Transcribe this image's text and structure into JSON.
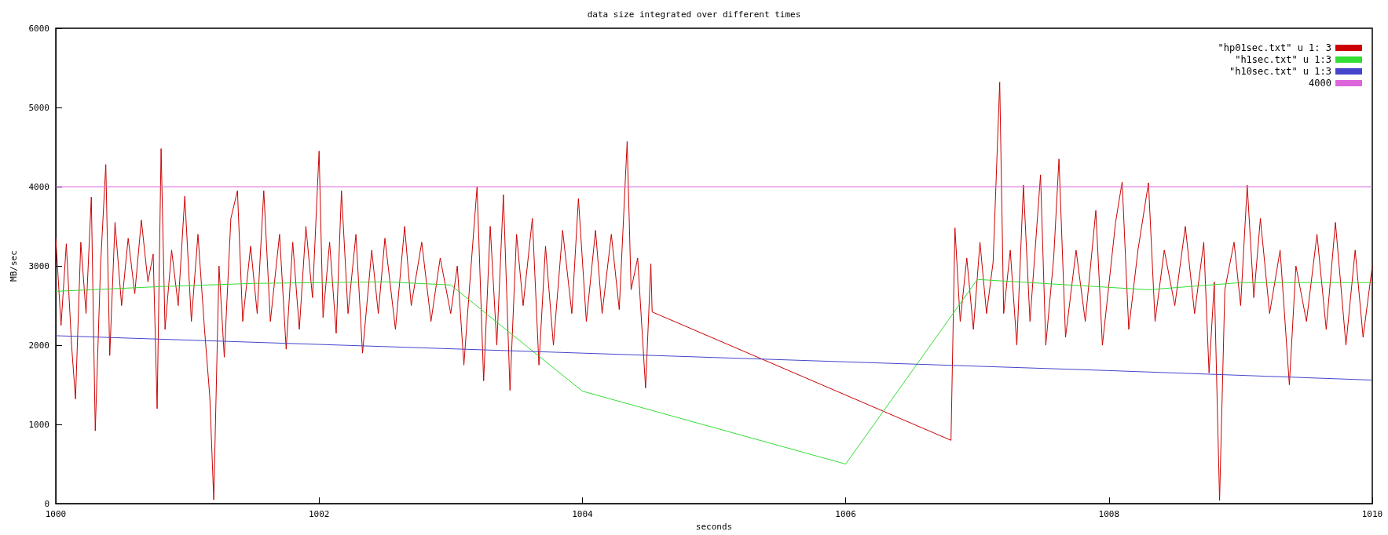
{
  "chart_data": {
    "type": "line",
    "title": "data size integrated over different times",
    "xlabel": "seconds",
    "ylabel": "MB/sec",
    "xlim": [
      1000,
      1010
    ],
    "xticks": [
      1000,
      1002,
      1004,
      1006,
      1008,
      1010
    ],
    "ylim": [
      0,
      6000
    ],
    "yticks": [
      0,
      1000,
      2000,
      3000,
      4000,
      5000,
      6000
    ],
    "grid": false,
    "legend": "top right",
    "marker": "none",
    "line_style": "solid",
    "series": [
      {
        "name": "\"hp01sec.txt\" u 1: 3",
        "color": "#cc0000",
        "x": [
          1000.0,
          1000.04,
          1000.08,
          1000.12,
          1000.15,
          1000.19,
          1000.23,
          1000.27,
          1000.3,
          1000.34,
          1000.38,
          1000.41,
          1000.45,
          1000.5,
          1000.55,
          1000.6,
          1000.65,
          1000.7,
          1000.74,
          1000.77,
          1000.8,
          1000.83,
          1000.88,
          1000.93,
          1000.98,
          1001.03,
          1001.08,
          1001.13,
          1001.17,
          1001.2,
          1001.24,
          1001.28,
          1001.33,
          1001.38,
          1001.42,
          1001.48,
          1001.53,
          1001.58,
          1001.63,
          1001.7,
          1001.75,
          1001.8,
          1001.85,
          1001.9,
          1001.95,
          1002.0,
          1002.03,
          1002.08,
          1002.13,
          1002.17,
          1002.22,
          1002.28,
          1002.33,
          1002.4,
          1002.45,
          1002.5,
          1002.58,
          1002.65,
          1002.7,
          1002.78,
          1002.85,
          1002.92,
          1003.0,
          1003.05,
          1003.1,
          1003.15,
          1003.2,
          1003.25,
          1003.3,
          1003.35,
          1003.4,
          1003.45,
          1003.5,
          1003.55,
          1003.62,
          1003.67,
          1003.72,
          1003.78,
          1003.85,
          1003.92,
          1003.97,
          1004.03,
          1004.1,
          1004.15,
          1004.22,
          1004.28,
          1004.34,
          1004.37,
          1004.42,
          1004.48,
          1004.52,
          1004.53,
          1006.8,
          1006.81,
          1006.83,
          1006.87,
          1006.92,
          1006.97,
          1007.02,
          1007.07,
          1007.12,
          1007.17,
          1007.2,
          1007.25,
          1007.3,
          1007.35,
          1007.4,
          1007.48,
          1007.52,
          1007.58,
          1007.62,
          1007.67,
          1007.75,
          1007.82,
          1007.9,
          1007.95,
          1008.05,
          1008.1,
          1008.15,
          1008.22,
          1008.3,
          1008.35,
          1008.42,
          1008.5,
          1008.58,
          1008.65,
          1008.72,
          1008.76,
          1008.8,
          1008.84,
          1008.88,
          1008.95,
          1009.0,
          1009.05,
          1009.1,
          1009.15,
          1009.22,
          1009.3,
          1009.37,
          1009.42,
          1009.5,
          1009.58,
          1009.65,
          1009.72,
          1009.8,
          1009.87,
          1009.93,
          1010.0
        ],
        "values": [
          3350,
          2250,
          3280,
          2000,
          1320,
          3300,
          2400,
          3870,
          920,
          3000,
          4280,
          1870,
          3550,
          2500,
          3350,
          2650,
          3580,
          2800,
          3150,
          1200,
          4480,
          2200,
          3200,
          2500,
          3880,
          2300,
          3400,
          2200,
          1350,
          50,
          3000,
          1850,
          3600,
          3950,
          2300,
          3250,
          2400,
          3950,
          2300,
          3400,
          1950,
          3300,
          2200,
          3500,
          2600,
          4450,
          2350,
          3300,
          2150,
          3950,
          2400,
          3400,
          1900,
          3200,
          2400,
          3350,
          2200,
          3500,
          2500,
          3300,
          2300,
          3100,
          2400,
          3000,
          1750,
          2900,
          4000,
          1550,
          3500,
          2000,
          3900,
          1430,
          3400,
          2500,
          3600,
          1750,
          3250,
          2000,
          3450,
          2400,
          3850,
          2300,
          3450,
          2400,
          3400,
          2450,
          4570,
          2700,
          3100,
          1460,
          3030,
          2420,
          800,
          1700,
          3480,
          2300,
          3100,
          2200,
          3300,
          2400,
          3050,
          5320,
          2400,
          3200,
          2000,
          4020,
          2300,
          4150,
          2000,
          3100,
          4350,
          2100,
          3200,
          2300,
          3700,
          2000,
          3550,
          4060,
          2200,
          3200,
          4050,
          2300,
          3200,
          2500,
          3500,
          2400,
          3300,
          1650,
          2800,
          40,
          2700,
          3300,
          2500,
          4020,
          2600,
          3600,
          2400,
          3200,
          1500,
          3000,
          2300,
          3400,
          2200,
          3550,
          2000,
          3200,
          2100,
          3000
        ]
      },
      {
        "name": "\"h1sec.txt\" u 1:3",
        "color": "#33dd33",
        "x": [
          1000,
          1000.8,
          1001.5,
          1002.5,
          1003.0,
          1004,
          1006,
          1007,
          1007.8,
          1008.3,
          1009,
          1010
        ],
        "values": [
          2680,
          2740,
          2780,
          2800,
          2760,
          1420,
          500,
          2830,
          2750,
          2700,
          2790,
          2790
        ]
      },
      {
        "name": "\"h10sec.txt\" u 1:3",
        "color": "#4444cc",
        "x": [
          1000,
          1002,
          1004,
          1006,
          1008,
          1010
        ],
        "values": [
          2120,
          2010,
          1900,
          1790,
          1680,
          1560
        ]
      },
      {
        "name": "4000",
        "color": "#dd66dd",
        "x": [
          1000,
          1010
        ],
        "values": [
          4000,
          4000
        ]
      }
    ]
  }
}
